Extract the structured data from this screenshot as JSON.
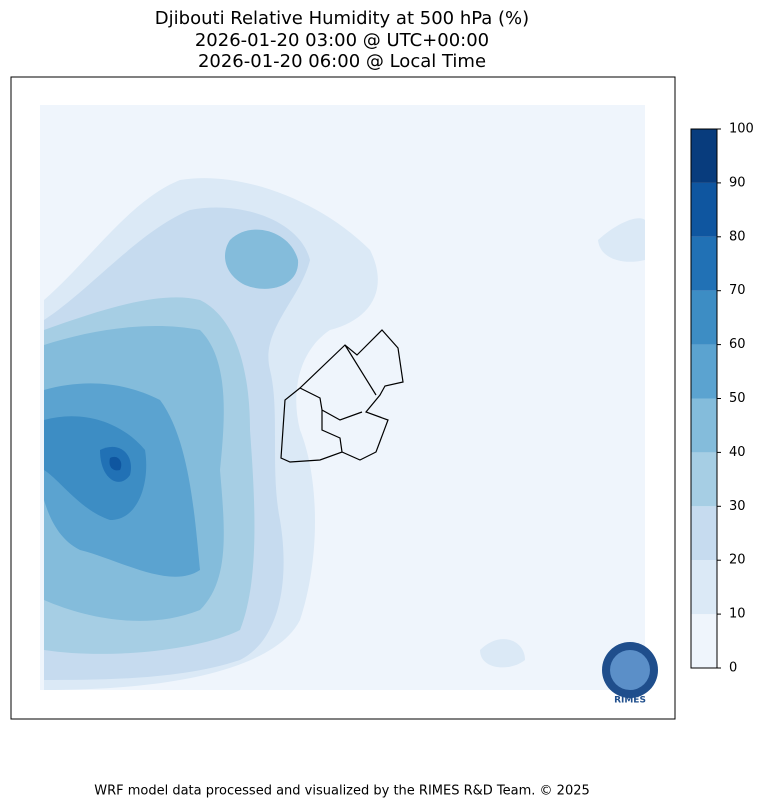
{
  "title": [
    "Djibouti Relative Humidity at 500 hPa (%)",
    "2026-01-20 03:00 @ UTC+00:00",
    "2026-01-20 06:00 @ Local Time"
  ],
  "colorbar": {
    "ticks": [
      0,
      10,
      20,
      30,
      40,
      50,
      60,
      70,
      80,
      90,
      100
    ],
    "colors": [
      "#eff5fc",
      "#dbe9f6",
      "#c6dbef",
      "#a6cee4",
      "#84bcdb",
      "#5ba3d0",
      "#3d8dc4",
      "#2171b5",
      "#0f56a0",
      "#083c7d"
    ]
  },
  "logo_text": "RIMES",
  "footer": "WRF model data processed and visualized by the RIMES R&D Team. © 2025"
}
